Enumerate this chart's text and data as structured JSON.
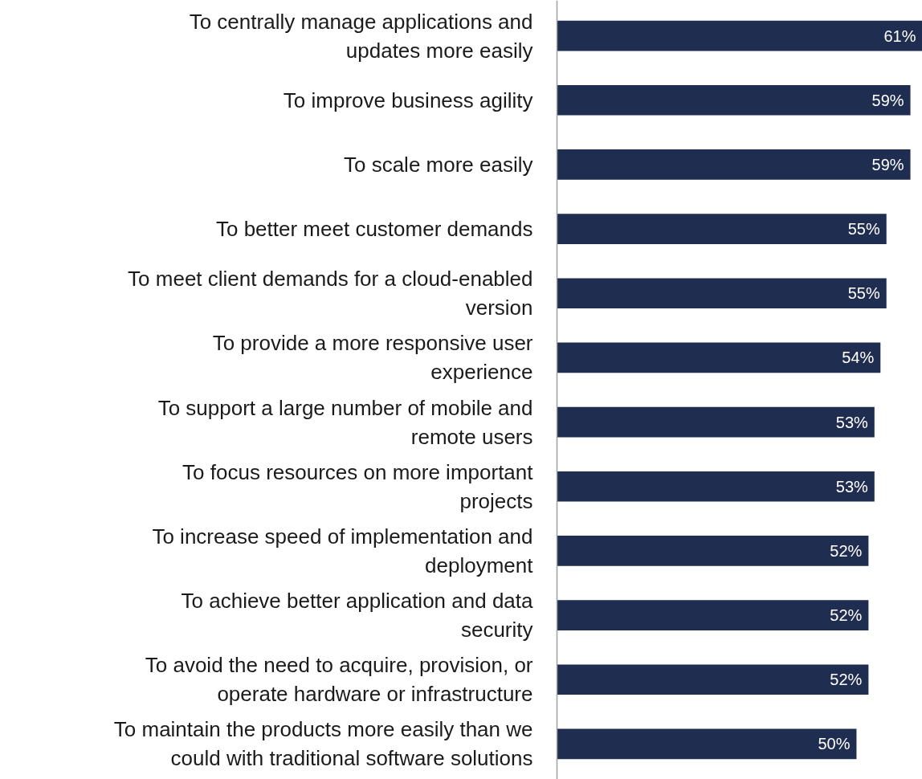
{
  "chart_data": {
    "type": "bar",
    "orientation": "horizontal",
    "categories": [
      "To centrally manage applications and\nupdates more easily",
      "To improve business agility",
      "To scale more easily",
      "To better meet customer demands",
      "To meet client demands for a cloud-enabled\nversion",
      "To provide a more responsive user\nexperience",
      "To support a large number of mobile and\nremote users",
      "To focus resources on more important\nprojects",
      "To increase speed of implementation and\ndeployment",
      "To achieve better application and data\nsecurity",
      "To avoid the need to acquire, provision, or\noperate hardware or infrastructure",
      "To maintain the products more easily than we\ncould with traditional software solutions"
    ],
    "values": [
      61,
      59,
      59,
      55,
      55,
      54,
      53,
      53,
      52,
      52,
      52,
      50
    ],
    "value_labels": [
      "61%",
      "59%",
      "59%",
      "55%",
      "55%",
      "54%",
      "53%",
      "53%",
      "52%",
      "52%",
      "52%",
      "50%"
    ],
    "color": "#1f2d50",
    "grid": false
  }
}
